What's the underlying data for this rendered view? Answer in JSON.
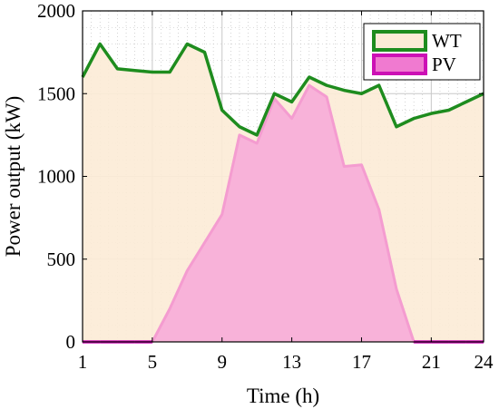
{
  "chart_data": {
    "type": "area",
    "x": [
      1,
      2,
      3,
      4,
      5,
      6,
      7,
      8,
      9,
      10,
      11,
      12,
      13,
      14,
      15,
      16,
      17,
      18,
      19,
      20,
      21,
      22,
      23,
      24
    ],
    "series": [
      {
        "name": "WT",
        "values": [
          1600,
          1800,
          1650,
          1640,
          1630,
          1630,
          1800,
          1750,
          1400,
          1300,
          1250,
          1500,
          1450,
          1600,
          1550,
          1520,
          1500,
          1550,
          1300,
          1350,
          1380,
          1400,
          1450,
          1500
        ],
        "line_color": "#1e8c1e",
        "fill_color": "#fcebd6"
      },
      {
        "name": "PV",
        "values": [
          0,
          0,
          0,
          0,
          0,
          200,
          430,
          600,
          770,
          1250,
          1200,
          1470,
          1350,
          1550,
          1480,
          1060,
          1070,
          800,
          320,
          0,
          0,
          0,
          0,
          0
        ],
        "line_color": "#f49cd0",
        "fill_color": "#f8b2d9",
        "zero_line_color": "#cc11b5"
      }
    ],
    "xlabel": "Time (h)",
    "ylabel": "Power output (kW)",
    "xlim": [
      1,
      24
    ],
    "ylim": [
      0,
      2000
    ],
    "xticks": [
      1,
      5,
      9,
      13,
      17,
      21,
      24
    ],
    "yticks": [
      0,
      500,
      1000,
      1500,
      2000
    ],
    "grid": true,
    "legend_position": "top-right"
  }
}
